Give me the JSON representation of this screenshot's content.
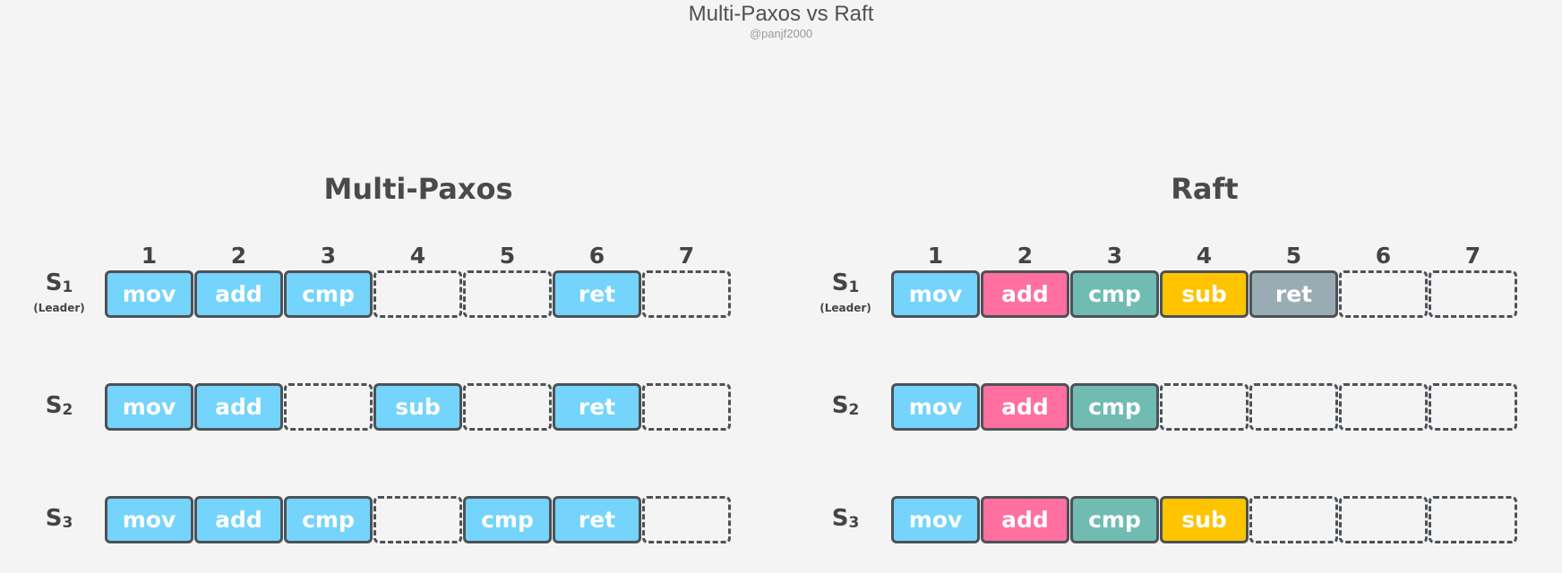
{
  "title": "Multi-Paxos vs Raft",
  "subtitle": "@panjf2000",
  "colors": {
    "mov": "#74d4fb",
    "add": "#ff6f9f",
    "cmp": "#70bcb3",
    "sub": "#ffc400",
    "ret": "#9aacb3",
    "border": "#4d5257",
    "background": "#f4f4f4"
  },
  "panels": [
    {
      "title": "Multi-Paxos",
      "indices": [
        "1",
        "2",
        "3",
        "4",
        "5",
        "6",
        "7"
      ],
      "rows": [
        {
          "server": "S",
          "server_num": "1",
          "role": "(Leader)",
          "entries": [
            "mov",
            "add",
            "cmp",
            "",
            "",
            "ret",
            ""
          ],
          "fills": [
            "mov",
            "mov",
            "mov",
            "",
            "",
            "mov",
            ""
          ]
        },
        {
          "server": "S",
          "server_num": "2",
          "role": "",
          "entries": [
            "mov",
            "add",
            "",
            "sub",
            "",
            "ret",
            ""
          ],
          "fills": [
            "mov",
            "mov",
            "",
            "mov",
            "",
            "mov",
            ""
          ]
        },
        {
          "server": "S",
          "server_num": "3",
          "role": "",
          "entries": [
            "mov",
            "add",
            "cmp",
            "",
            "cmp",
            "ret",
            ""
          ],
          "fills": [
            "mov",
            "mov",
            "mov",
            "",
            "mov",
            "mov",
            ""
          ]
        }
      ]
    },
    {
      "title": "Raft",
      "indices": [
        "1",
        "2",
        "3",
        "4",
        "5",
        "6",
        "7"
      ],
      "rows": [
        {
          "server": "S",
          "server_num": "1",
          "role": "(Leader)",
          "entries": [
            "mov",
            "add",
            "cmp",
            "sub",
            "ret",
            "",
            ""
          ],
          "fills": [
            "mov",
            "add",
            "cmp",
            "sub",
            "ret",
            "",
            ""
          ]
        },
        {
          "server": "S",
          "server_num": "2",
          "role": "",
          "entries": [
            "mov",
            "add",
            "cmp",
            "",
            "",
            "",
            ""
          ],
          "fills": [
            "mov",
            "add",
            "cmp",
            "",
            "",
            "",
            ""
          ]
        },
        {
          "server": "S",
          "server_num": "3",
          "role": "",
          "entries": [
            "mov",
            "add",
            "cmp",
            "sub",
            "",
            "",
            ""
          ],
          "fills": [
            "mov",
            "add",
            "cmp",
            "sub",
            "",
            "",
            ""
          ]
        }
      ]
    }
  ]
}
